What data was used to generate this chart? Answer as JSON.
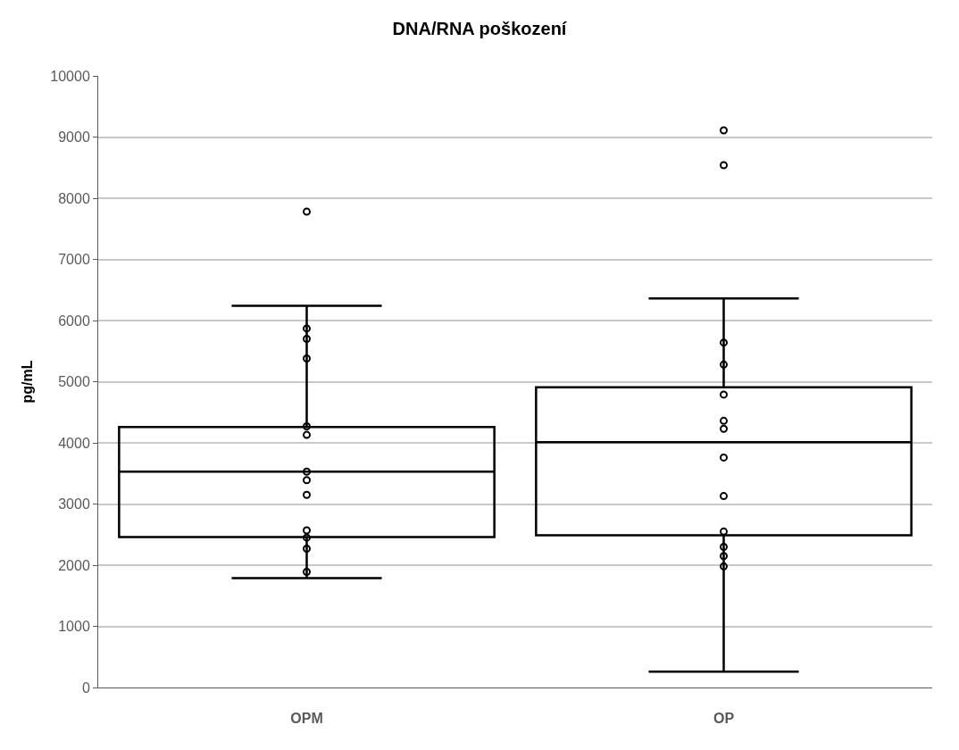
{
  "chart_data": {
    "type": "box",
    "title": "DNA/RNA poškození",
    "ylabel": "pg/mL",
    "categories": [
      "OPM",
      "OP"
    ],
    "boxes": [
      {
        "low": 1790,
        "q1": 2460,
        "median": 3530,
        "q3": 4260,
        "high": 6240,
        "outliers": [
          7780
        ]
      },
      {
        "low": 260,
        "q1": 2490,
        "median": 4010,
        "q3": 4910,
        "high": 6360,
        "outliers": [
          9110,
          8540
        ]
      }
    ],
    "color": "#000000",
    "series": [
      {
        "type": "scatter",
        "color": "#000000",
        "x": [
          "OPM",
          "OPM",
          "OPM",
          "OPM",
          "OPM",
          "OPM",
          "OPM",
          "OPM",
          "OPM",
          "OPM",
          "OPM",
          "OPM",
          "OP",
          "OP",
          "OP",
          "OP",
          "OP",
          "OP",
          "OP",
          "OP",
          "OP",
          "OP",
          "OP"
        ],
        "values": [
          5870,
          5700,
          5380,
          4270,
          4130,
          3530,
          3390,
          3150,
          2570,
          2450,
          2270,
          1890,
          5640,
          5280,
          4790,
          4360,
          4230,
          3760,
          3130,
          2550,
          2300,
          2150,
          1980
        ]
      }
    ],
    "marker": "circle",
    "ylim": [
      0,
      10000
    ],
    "yticks": [
      0,
      1000,
      2000,
      3000,
      4000,
      5000,
      6000,
      7000,
      8000,
      9000,
      10000
    ],
    "grid": "y"
  }
}
